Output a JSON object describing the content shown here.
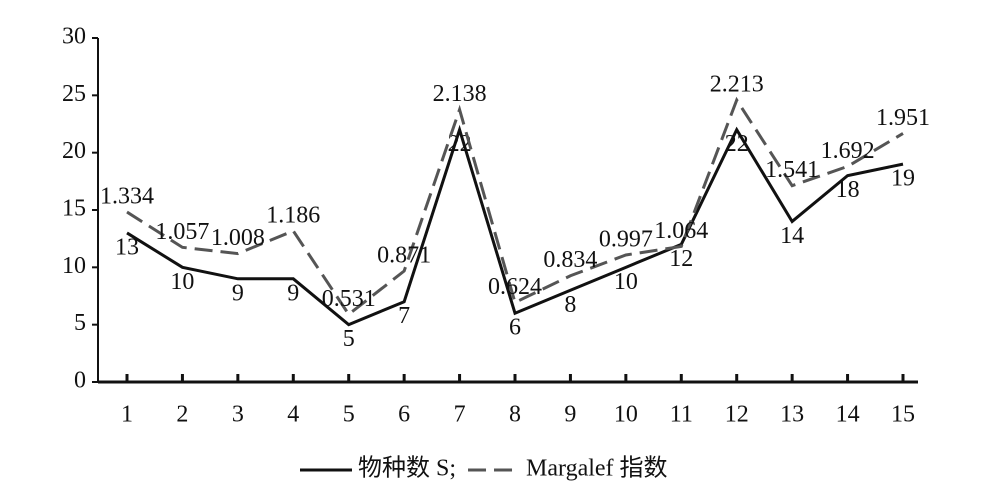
{
  "chart_data": {
    "type": "line",
    "categories": [
      "1",
      "2",
      "3",
      "4",
      "5",
      "6",
      "7",
      "8",
      "9",
      "10",
      "11",
      "12",
      "13",
      "14",
      "15"
    ],
    "series": [
      {
        "name": "物种数 S;",
        "color": "#111111",
        "dash": false,
        "values": [
          13,
          10,
          9,
          9,
          5,
          7,
          22,
          6,
          8,
          10,
          12,
          22,
          14,
          18,
          19
        ]
      },
      {
        "name": "Margalef 指数",
        "color": "#555555",
        "dash": true,
        "axis": "y2",
        "values": [
          1.334,
          1.057,
          1.008,
          1.186,
          0.531,
          0.871,
          2.138,
          0.624,
          0.834,
          0.997,
          1.064,
          2.213,
          1.541,
          1.692,
          1.951
        ]
      }
    ],
    "ylim": [
      0,
      30
    ],
    "yticks": [
      0,
      5,
      10,
      15,
      20,
      25,
      30
    ],
    "y2lim": [
      0,
      2.7
    ],
    "legend": "bottom"
  }
}
